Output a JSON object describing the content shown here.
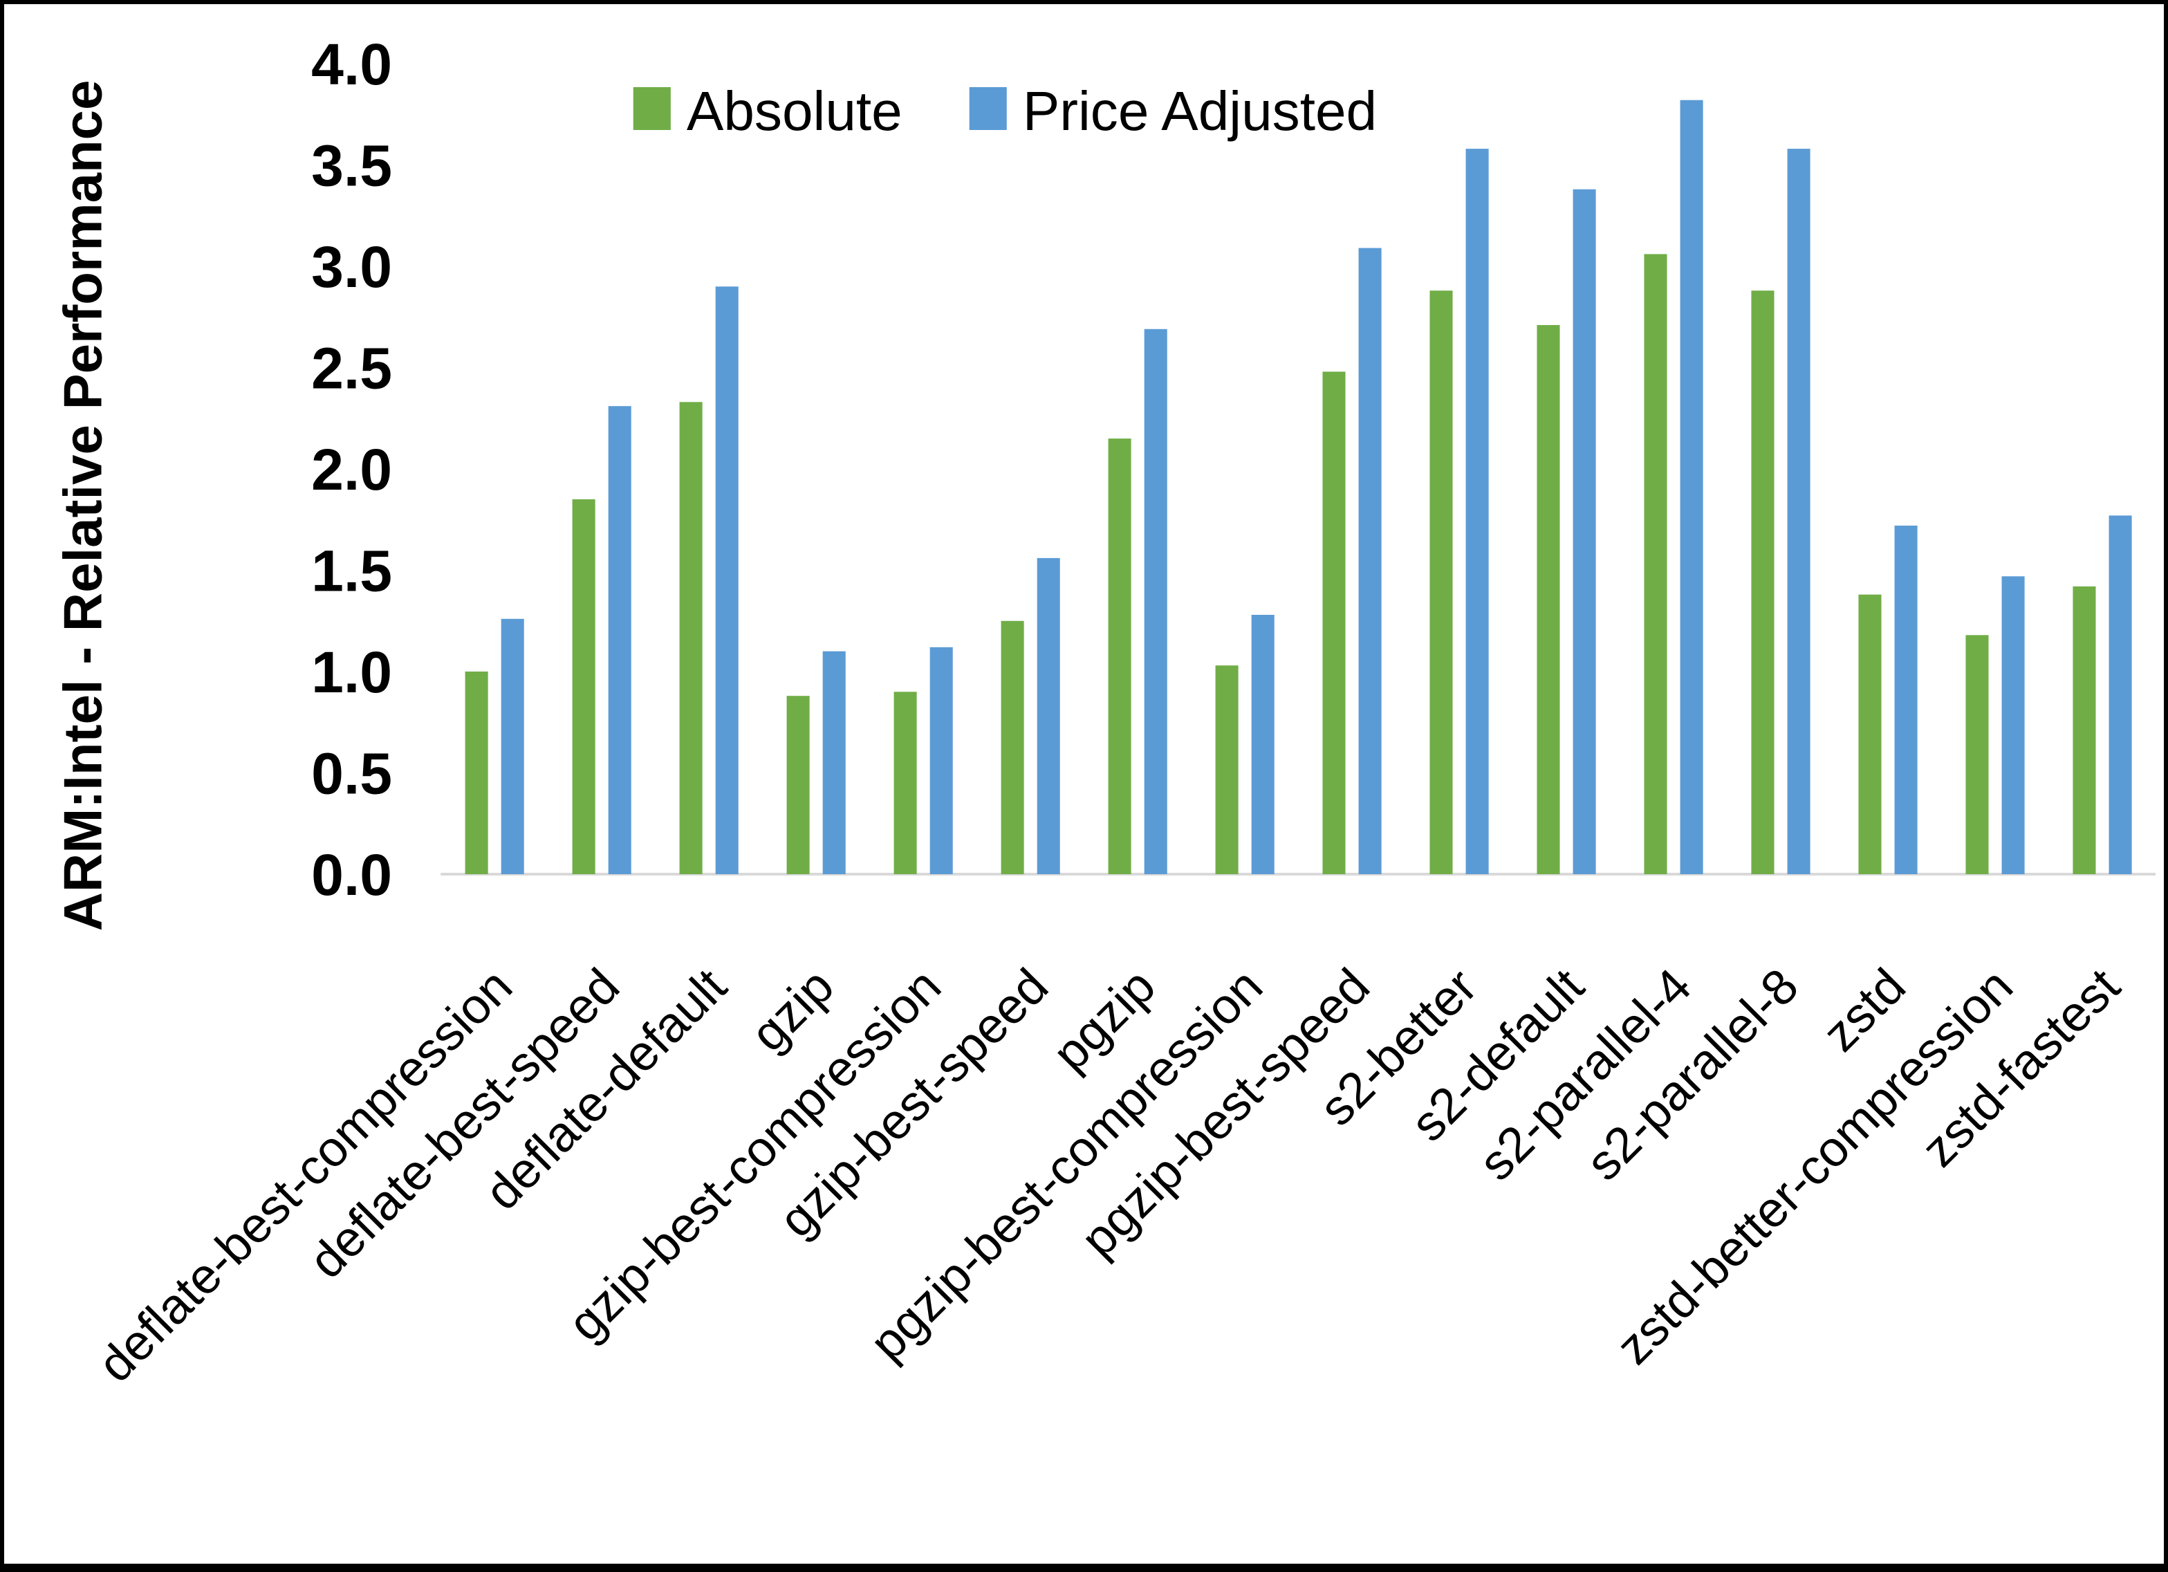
{
  "chart_data": {
    "type": "bar",
    "title": "",
    "ylabel": "ARM:Intel - Relative Performance",
    "xlabel": "",
    "ylim": [
      0.0,
      4.0
    ],
    "ytick_step": 0.5,
    "ytick_labels": [
      "0.0",
      "0.5",
      "1.0",
      "1.5",
      "2.0",
      "2.5",
      "3.0",
      "3.5",
      "4.0"
    ],
    "grid": false,
    "legend_position": "top-center",
    "background_color": "#FFFFFF",
    "axis_line_color": "#D9D9D9",
    "frame_border_color": "#000000",
    "categories": [
      "deflate-best-compression",
      "deflate-best-speed",
      "deflate-default",
      "gzip",
      "gzip-best-compression",
      "gzip-best-speed",
      "pgzip",
      "pgzip-best-compression",
      "pgzip-best-speed",
      "s2-better",
      "s2-default",
      "s2-parallel-4",
      "s2-parallel-8",
      "zstd",
      "zstd-better-compression",
      "zstd-fastest"
    ],
    "series": [
      {
        "name": "Absolute",
        "color": "#70AD47",
        "values": [
          1.0,
          1.85,
          2.33,
          0.88,
          0.9,
          1.25,
          2.15,
          1.03,
          2.48,
          2.88,
          2.71,
          3.06,
          2.88,
          1.38,
          1.18,
          1.42
        ]
      },
      {
        "name": "Price Adjusted",
        "color": "#5B9BD5",
        "values": [
          1.26,
          2.31,
          2.9,
          1.1,
          1.12,
          1.56,
          2.69,
          1.28,
          3.09,
          3.58,
          3.38,
          3.82,
          3.58,
          1.72,
          1.47,
          1.77
        ]
      }
    ]
  }
}
